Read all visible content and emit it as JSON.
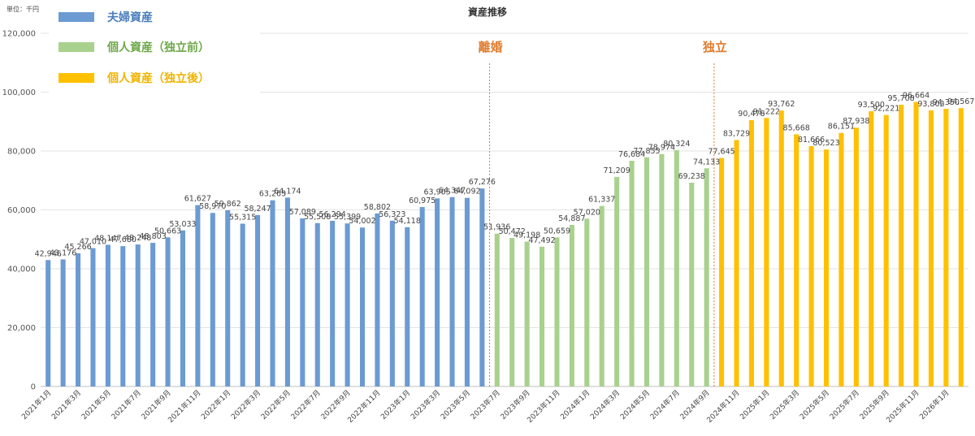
{
  "chart_data": {
    "type": "bar",
    "title": "資産推移",
    "unit": "単位：千円",
    "ylim": [
      0,
      120000
    ],
    "yticks": [
      0,
      20000,
      40000,
      60000,
      80000,
      100000,
      120000
    ],
    "ytick_labels": [
      "0",
      "20,000",
      "40,000",
      "60,000",
      "80,000",
      "100,000",
      "120,000"
    ],
    "grid": true,
    "legend_position": "top-left",
    "colors": {
      "夫婦資産": "#6b9bd2",
      "個人資産（独立前）": "#a9d18e",
      "個人資産（独立後）": "#ffc000"
    },
    "series": [
      {
        "name": "夫婦資産",
        "color": "#6b9bd2",
        "start": 0,
        "values": [
          42946,
          43176,
          45266,
          47010,
          48147,
          47680,
          48248,
          48803,
          50663,
          53033,
          61627,
          58970,
          59862,
          55315,
          58247,
          63263,
          64174,
          57089,
          55508,
          56294,
          55399,
          54002,
          58802,
          56323,
          54118,
          60975,
          63905,
          64347,
          64092,
          67276
        ]
      },
      {
        "name": "個人資産（独立前）",
        "color": "#a9d18e",
        "start": 30,
        "values": [
          51936,
          50472,
          49198,
          47492,
          50659,
          54887,
          57020,
          61337,
          71209,
          76684,
          77855,
          78974,
          80324,
          69238,
          74133
        ]
      },
      {
        "name": "個人資産（独立後）",
        "color": "#ffc000",
        "start": 45,
        "values": [
          77645,
          83729,
          90478,
          91222,
          93762,
          85668,
          81666,
          80523,
          86151,
          87938,
          93500,
          92221,
          95708,
          96664,
          93802,
          94350,
          94567
        ]
      }
    ],
    "data_labels": [
      "42,946",
      "43,176",
      "45,266",
      "47,010",
      "48,147",
      "47,680",
      "48,248",
      "48,803",
      "50,663",
      "53,033",
      "61,627",
      "58,970",
      "59,862",
      "55,315",
      "58,247",
      "63,263",
      "64,174",
      "57,089",
      "55,508",
      "56,294",
      "55,399",
      "54,002",
      "58,802",
      "56,323",
      "54,118",
      "60,975",
      "63,905",
      "64,347",
      "64,092",
      "67,276",
      "51,936",
      "50,472",
      "49,198",
      "47,492",
      "50,659",
      "54,887",
      "57,020",
      "61,337",
      "71,209",
      "76,684",
      "77,855",
      "78,974",
      "80,324",
      "69,238",
      "74,133",
      "77,645",
      "83,729",
      "90,478",
      "91,222",
      "93,762",
      "85,668",
      "81,666",
      "80,523",
      "86,151",
      "87,938",
      "93,500",
      "92,221",
      "95,708",
      "96,664",
      "93,802",
      "94,350",
      "94,567"
    ],
    "x_tick_labels": [
      "2021年1月",
      "2021年3月",
      "2021年5月",
      "2021年7月",
      "2021年9月",
      "2021年11月",
      "2022年1月",
      "2022年3月",
      "2022年5月",
      "2022年7月",
      "2022年9月",
      "2022年11月",
      "2023年1月",
      "2023年3月",
      "2023年5月",
      "2023年7月",
      "2023年9月",
      "2023年11月",
      "2024年1月",
      "2024年3月",
      "2024年5月",
      "2024年7月",
      "2024年9月",
      "2024年11月",
      "2025年1月",
      "2025年3月",
      "2025年5月",
      "2025年7月",
      "2025年9月",
      "2025年11月",
      "2026年1月"
    ],
    "annotations": [
      {
        "text": "離婚",
        "after_index": 29
      },
      {
        "text": "独立",
        "after_index": 44
      }
    ]
  }
}
